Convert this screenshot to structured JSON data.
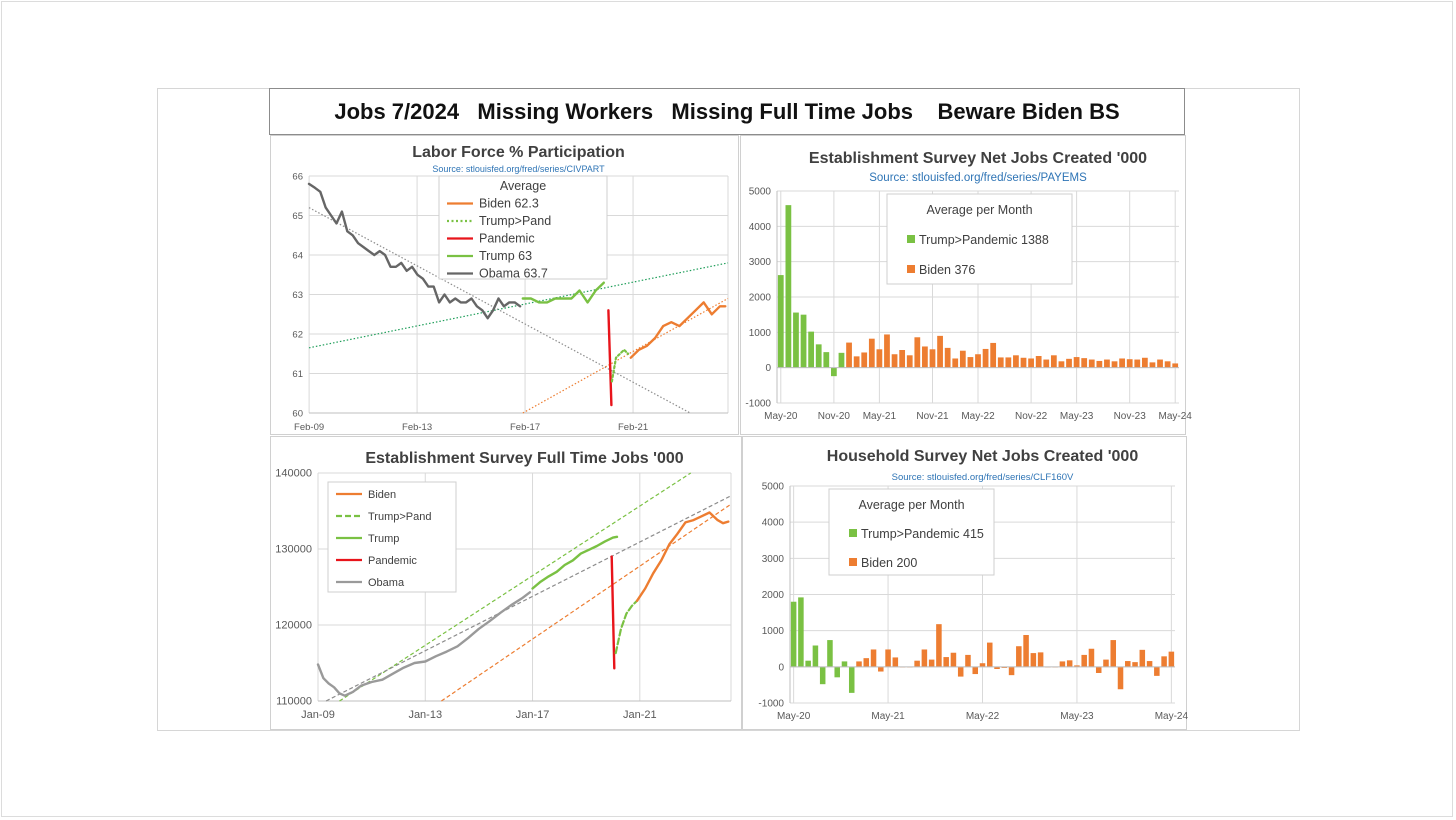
{
  "page": {
    "title": "Jobs 7/2024   Missing Workers   Missing Full Time Jobs    Beware Biden BS"
  },
  "colors": {
    "biden": "#ed7d31",
    "trump": "#7ac143",
    "trump_pand": "#7ac143",
    "pandemic": "#e8141b",
    "obama_dark": "#666666",
    "obama_light": "#9a9a9a",
    "trend_green": "#1f9e5a",
    "trend_gray": "#8c8c8c",
    "source_blue": "#2e74b5",
    "grid": "#d9d9d9"
  },
  "chart_data": [
    {
      "id": "lfpr",
      "type": "line",
      "title": "Labor Force % Participation",
      "subtitle": "Source: stlouisfed.org/fred/series/CIVPART",
      "xlabel": "",
      "ylabel": "",
      "x_ticks": [
        "Feb-09",
        "Feb-13",
        "Feb-17",
        "Feb-21"
      ],
      "xlim": [
        2009.08,
        2024.6
      ],
      "ylim": [
        60,
        66
      ],
      "y_ticks": [
        "60",
        "61",
        "62",
        "63",
        "64",
        "65",
        "66"
      ],
      "legend": {
        "title": "Average",
        "placement": "top-center",
        "entries": [
          {
            "label": "Biden 62.3",
            "series": "Biden"
          },
          {
            "label": "Trump>Pand",
            "series": "Trump>Pand"
          },
          {
            "label": "Pandemic",
            "series": "Pandemic"
          },
          {
            "label": "Trump 63",
            "series": "Trump"
          },
          {
            "label": "Obama 63.7",
            "series": "Obama"
          }
        ]
      },
      "series": [
        {
          "name": "Obama",
          "color": "#666666",
          "width": 2.4,
          "style": "solid",
          "x": [
            2009.08,
            2009.3,
            2009.5,
            2009.7,
            2009.9,
            2010.1,
            2010.3,
            2010.5,
            2010.7,
            2010.9,
            2011.1,
            2011.3,
            2011.5,
            2011.7,
            2011.9,
            2012.1,
            2012.3,
            2012.5,
            2012.7,
            2012.9,
            2013.1,
            2013.3,
            2013.5,
            2013.7,
            2013.9,
            2014.1,
            2014.3,
            2014.5,
            2014.7,
            2014.9,
            2015.1,
            2015.3,
            2015.5,
            2015.7,
            2015.9,
            2016.1,
            2016.3,
            2016.5,
            2016.7,
            2016.9
          ],
          "y": [
            65.8,
            65.7,
            65.6,
            65.2,
            65.0,
            64.8,
            65.1,
            64.6,
            64.5,
            64.3,
            64.2,
            64.1,
            64.0,
            64.1,
            64.0,
            63.7,
            63.7,
            63.8,
            63.6,
            63.7,
            63.5,
            63.4,
            63.2,
            63.2,
            62.8,
            63.0,
            62.8,
            62.9,
            62.8,
            62.8,
            62.9,
            62.7,
            62.6,
            62.4,
            62.6,
            62.9,
            62.7,
            62.8,
            62.8,
            62.7
          ]
        },
        {
          "name": "Trump",
          "color": "#7ac143",
          "width": 2.4,
          "style": "solid",
          "x": [
            2017.0,
            2017.3,
            2017.6,
            2017.9,
            2018.2,
            2018.5,
            2018.8,
            2019.1,
            2019.4,
            2019.7,
            2020.0
          ],
          "y": [
            62.9,
            62.9,
            62.8,
            62.8,
            62.9,
            62.9,
            62.9,
            63.1,
            62.8,
            63.1,
            63.3
          ]
        },
        {
          "name": "Pandemic",
          "color": "#e8141b",
          "width": 2.4,
          "style": "solid",
          "x": [
            2020.17,
            2020.28
          ],
          "y": [
            62.6,
            60.2
          ]
        },
        {
          "name": "Trump>Pand",
          "color": "#7ac143",
          "width": 2.2,
          "style": "dotted",
          "x": [
            2020.3,
            2020.45,
            2020.6,
            2020.75,
            2020.9
          ],
          "y": [
            60.8,
            61.4,
            61.5,
            61.6,
            61.5
          ]
        },
        {
          "name": "Biden",
          "color": "#ed7d31",
          "width": 2.4,
          "style": "solid",
          "x": [
            2021.0,
            2021.3,
            2021.6,
            2021.9,
            2022.2,
            2022.5,
            2022.8,
            2023.1,
            2023.4,
            2023.7,
            2024.0,
            2024.3,
            2024.5
          ],
          "y": [
            61.4,
            61.6,
            61.7,
            61.9,
            62.2,
            62.3,
            62.2,
            62.4,
            62.6,
            62.8,
            62.5,
            62.7,
            62.7
          ]
        }
      ],
      "trendlines": [
        {
          "color": "#1f9e5a",
          "x": [
            2009.08,
            2024.6
          ],
          "y": [
            61.65,
            63.8
          ]
        },
        {
          "color": "#8c8c8c",
          "x": [
            2009.08,
            2023.2
          ],
          "y": [
            65.2,
            60.0
          ]
        },
        {
          "color": "#ed7d31",
          "x": [
            2017.0,
            2024.6
          ],
          "y": [
            60.0,
            62.9
          ]
        }
      ]
    },
    {
      "id": "payems",
      "type": "bar",
      "title": "Establishment Survey Net Jobs Created '000",
      "subtitle": "Source: stlouisfed.org/fred/series/PAYEMS",
      "xlabel": "",
      "ylabel": "",
      "x_ticks": [
        "May-20",
        "Nov-20",
        "May-21",
        "Nov-21",
        "May-22",
        "Nov-22",
        "May-23",
        "Nov-23",
        "May-24"
      ],
      "ylim": [
        -1000,
        5000
      ],
      "y_ticks": [
        "-1000",
        "0",
        "1000",
        "2000",
        "3000",
        "4000",
        "5000"
      ],
      "legend": {
        "title": "Average per Month",
        "placement": "top-center",
        "entries": [
          {
            "label": "Trump>Pandemic 1388",
            "color": "#7ac143"
          },
          {
            "label": "Biden 376",
            "color": "#ed7d31"
          }
        ]
      },
      "series": [
        {
          "name": "Trump>Pandemic",
          "color": "#7ac143",
          "start_index": 0,
          "values": [
            2620,
            4600,
            1560,
            1500,
            1020,
            660,
            440,
            -240,
            420
          ]
        },
        {
          "name": "Biden",
          "color": "#ed7d31",
          "start_index": 9,
          "values": [
            710,
            320,
            430,
            820,
            520,
            940,
            380,
            500,
            350,
            860,
            600,
            520,
            900,
            560,
            260,
            480,
            300,
            380,
            530,
            700,
            290,
            290,
            350,
            280,
            260,
            330,
            230,
            350,
            180,
            250,
            300,
            270,
            230,
            190,
            230,
            180,
            260,
            240,
            230,
            280,
            150,
            230,
            180,
            120
          ]
        }
      ]
    },
    {
      "id": "fulltime",
      "type": "line",
      "title": "Establishment Survey Full Time Jobs '000",
      "subtitle": "",
      "xlabel": "",
      "ylabel": "",
      "x_ticks": [
        "Jan-09",
        "Jan-13",
        "Jan-17",
        "Jan-21"
      ],
      "xlim": [
        2009.0,
        2024.4
      ],
      "ylim": [
        110000,
        140000
      ],
      "y_ticks": [
        "110000",
        "120000",
        "130000",
        "140000"
      ],
      "legend": {
        "title": "",
        "placement": "top-left",
        "entries": [
          {
            "label": "Biden",
            "series": "Biden"
          },
          {
            "label": "Trump>Pand",
            "series": "Trump>Pand"
          },
          {
            "label": "Trump",
            "series": "Trump"
          },
          {
            "label": "Pandemic",
            "series": "Pandemic"
          },
          {
            "label": "Obama",
            "series": "Obama"
          }
        ]
      },
      "series": [
        {
          "name": "Obama",
          "color": "#9a9a9a",
          "width": 2.4,
          "style": "solid",
          "x": [
            2009.0,
            2009.2,
            2009.4,
            2009.6,
            2009.8,
            2010.0,
            2010.3,
            2010.6,
            2011.0,
            2011.4,
            2011.8,
            2012.2,
            2012.6,
            2013.0,
            2013.4,
            2013.8,
            2014.2,
            2014.6,
            2015.0,
            2015.4,
            2015.8,
            2016.2,
            2016.6,
            2016.9
          ],
          "y": [
            114800,
            113000,
            112300,
            111800,
            111000,
            110700,
            111200,
            112000,
            112500,
            112800,
            113600,
            114400,
            115000,
            115200,
            115900,
            116500,
            117200,
            118300,
            119500,
            120500,
            121600,
            122600,
            123500,
            124300
          ]
        },
        {
          "name": "Trump",
          "color": "#7ac143",
          "width": 2.4,
          "style": "solid",
          "x": [
            2017.0,
            2017.3,
            2017.6,
            2017.9,
            2018.2,
            2018.5,
            2018.8,
            2019.1,
            2019.4,
            2019.7,
            2020.0,
            2020.15
          ],
          "y": [
            124800,
            125700,
            126400,
            127000,
            127900,
            128500,
            129400,
            129900,
            130400,
            131000,
            131500,
            131600
          ]
        },
        {
          "name": "Pandemic",
          "color": "#e8141b",
          "width": 2.4,
          "style": "solid",
          "x": [
            2019.95,
            2020.05
          ],
          "y": [
            129000,
            114300
          ]
        },
        {
          "name": "Trump>Pand",
          "color": "#7ac143",
          "width": 2.2,
          "style": "dashed",
          "x": [
            2020.1,
            2020.3,
            2020.5,
            2020.7,
            2020.9
          ],
          "y": [
            116300,
            119500,
            121500,
            122500,
            123200
          ]
        },
        {
          "name": "Biden",
          "color": "#ed7d31",
          "width": 2.4,
          "style": "solid",
          "x": [
            2020.9,
            2021.2,
            2021.5,
            2021.8,
            2022.1,
            2022.4,
            2022.7,
            2023.0,
            2023.3,
            2023.6,
            2023.9,
            2024.1,
            2024.3
          ],
          "y": [
            123200,
            124800,
            126800,
            128500,
            130600,
            132000,
            133500,
            133800,
            134300,
            134800,
            133800,
            133400,
            133600
          ]
        }
      ],
      "trendlines": [
        {
          "color": "#7ac143",
          "style": "dashed",
          "x": [
            2009.8,
            2022.9
          ],
          "y": [
            110000,
            140000
          ]
        },
        {
          "color": "#8c8c8c",
          "style": "dashed",
          "x": [
            2009.3,
            2024.4
          ],
          "y": [
            110000,
            137000
          ]
        },
        {
          "color": "#ed7d31",
          "style": "dashed",
          "x": [
            2013.6,
            2024.4
          ],
          "y": [
            110000,
            135900
          ]
        }
      ]
    },
    {
      "id": "clf160v",
      "type": "bar",
      "title": "Household Survey Net Jobs Created '000",
      "subtitle": "Source: stlouisfed.org/fred/series/CLF160V",
      "xlabel": "",
      "ylabel": "",
      "x_ticks": [
        "May-20",
        "May-21",
        "May-22",
        "May-23",
        "May-24"
      ],
      "ylim": [
        -1000,
        5000
      ],
      "y_ticks": [
        "-1000",
        "0",
        "1000",
        "2000",
        "3000",
        "4000",
        "5000"
      ],
      "legend": {
        "title": "Average per Month",
        "placement": "top-center",
        "entries": [
          {
            "label": "Trump>Pandemic 415",
            "color": "#7ac143"
          },
          {
            "label": "Biden 200",
            "color": "#ed7d31"
          }
        ]
      },
      "series": [
        {
          "name": "Trump>Pandemic",
          "color": "#7ac143",
          "start_index": 0,
          "values": [
            1800,
            1920,
            170,
            590,
            -480,
            740,
            -290,
            150,
            -720
          ]
        },
        {
          "name": "Biden",
          "color": "#ed7d31",
          "start_index": 9,
          "values": [
            150,
            240,
            480,
            -130,
            480,
            260,
            0,
            0,
            170,
            480,
            200,
            1180,
            270,
            390,
            -270,
            330,
            -200,
            100,
            670,
            -60,
            -30,
            -230,
            570,
            880,
            380,
            400,
            0,
            0,
            150,
            180,
            40,
            330,
            500,
            -170,
            200,
            740,
            -620,
            160,
            130,
            470,
            160,
            -250,
            290,
            420
          ]
        }
      ]
    }
  ]
}
